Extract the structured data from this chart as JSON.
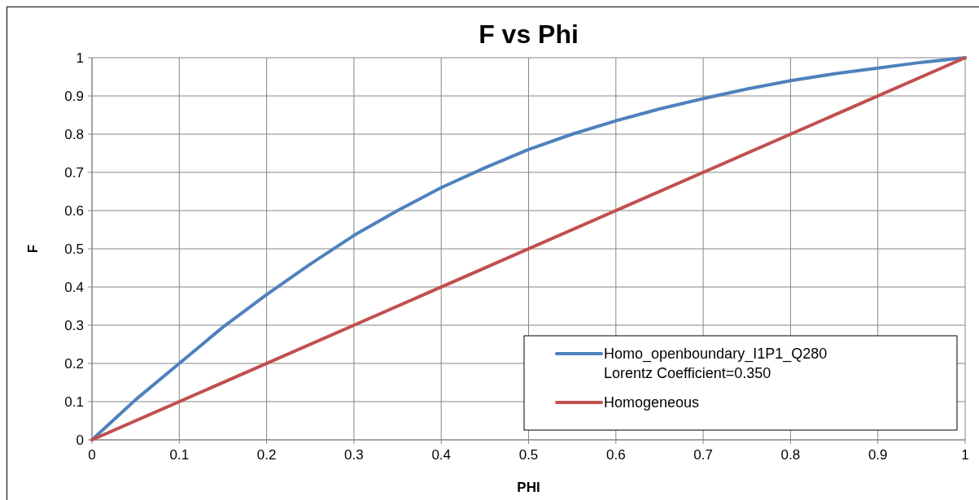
{
  "chart_data": {
    "type": "line",
    "title": "F vs Phi",
    "xlabel": "PHI",
    "ylabel": "F",
    "x": [
      0,
      0.05,
      0.1,
      0.15,
      0.2,
      0.25,
      0.3,
      0.35,
      0.4,
      0.45,
      0.5,
      0.55,
      0.6,
      0.65,
      0.7,
      0.75,
      0.8,
      0.85,
      0.9,
      0.95,
      1
    ],
    "series": [
      {
        "name": "Homo_openboundary_I1P1_Q280\nLorentz Coefficient=0.350",
        "color": "#4f81bd",
        "values": [
          0,
          0.105,
          0.2,
          0.295,
          0.38,
          0.46,
          0.535,
          0.6,
          0.66,
          0.712,
          0.76,
          0.8,
          0.835,
          0.866,
          0.893,
          0.918,
          0.94,
          0.958,
          0.973,
          0.988,
          1
        ]
      },
      {
        "name": "Homogeneous",
        "color": "#c0504d",
        "x": [
          0,
          1
        ],
        "values": [
          0,
          1
        ]
      }
    ],
    "xlim": [
      0,
      1
    ],
    "ylim": [
      0,
      1
    ],
    "xticks": [
      0,
      0.1,
      0.2,
      0.3,
      0.4,
      0.5,
      0.6,
      0.7,
      0.8,
      0.9,
      1
    ],
    "yticks": [
      0,
      0.1,
      0.2,
      0.3,
      0.4,
      0.5,
      0.6,
      0.7,
      0.8,
      0.9,
      1
    ],
    "grid": true,
    "legend": "bottom right"
  }
}
